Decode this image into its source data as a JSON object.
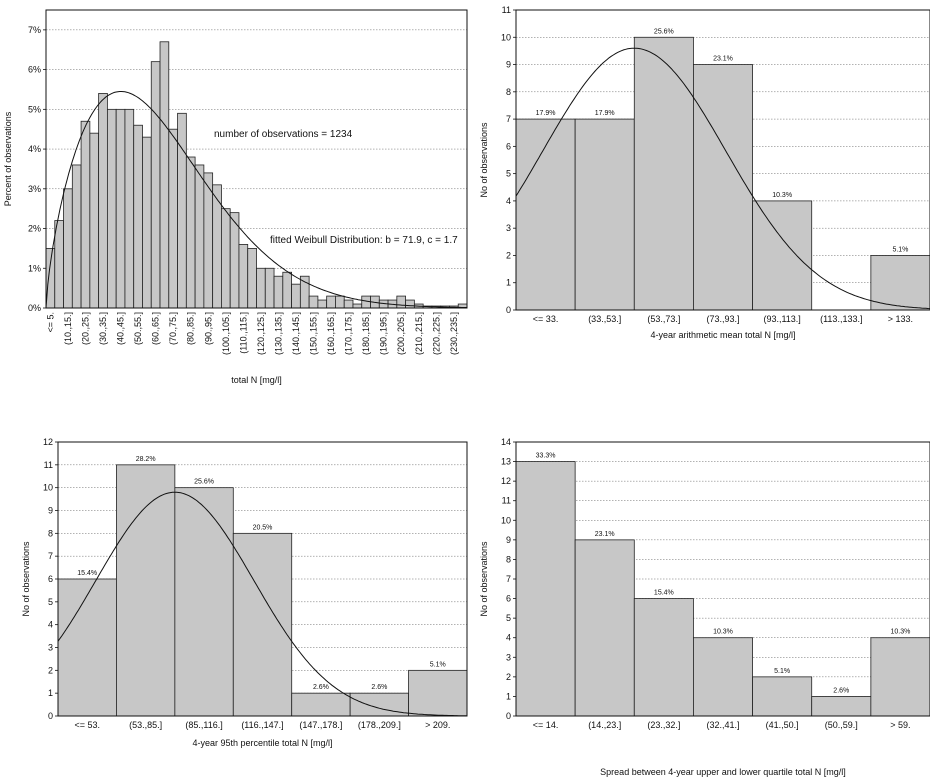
{
  "chart_data": [
    {
      "id": "hist-total-n",
      "type": "bar",
      "ylabel": "Percent of observations",
      "xlabel": "total N [mg/l]",
      "ylim": [
        0,
        7.5
      ],
      "yticks": [
        0,
        1,
        2,
        3,
        4,
        5,
        6,
        7
      ],
      "ytick_suffix": "%",
      "grid": true,
      "categories": [
        "<= 5.",
        "(5.,10.]",
        "(10.,15.]",
        "(15.,20.]",
        "(20.,25.]",
        "(25.,30.]",
        "(30.,35.]",
        "(35.,40.]",
        "(40.,45.]",
        "(45.,50.]",
        "(50.,55.]",
        "(55.,60.]",
        "(60.,65.]",
        "(65.,70.]",
        "(70.,75.]",
        "(75.,80.]",
        "(80.,85.]",
        "(85.,90.]",
        "(90.,95.]",
        "(95.,100.]",
        "(100.,105.]",
        "(105.,110.]",
        "(110.,115.]",
        "(115.,120.]",
        "(120.,125.]",
        "(125.,130.]",
        "(130.,135.]",
        "(135.,140.]",
        "(140.,145.]",
        "(145.,150.]",
        "(150.,155.]",
        "(155.,160.]",
        "(160.,165.]",
        "(165.,170.]",
        "(170.,175.]",
        "(175.,180.]",
        "(180.,185.]",
        "(185.,190.]",
        "(190.,195.]",
        "(195.,200.]",
        "(200.,205.]",
        "(205.,210.]",
        "(210.,215.]",
        "(215.,220.]",
        "(220.,225.]",
        "(225.,230.]",
        "(230.,235.]",
        "(235.,240.]"
      ],
      "shown_tick_labels": [
        "<= 5.",
        "(10.,15.]",
        "(20.,25.]",
        "(30.,35.]",
        "(40.,45.]",
        "(50.,55.]",
        "(60.,65.]",
        "(70.,75.]",
        "(80.,85.]",
        "(90.,95.]",
        "(100.,105.]",
        "(110.,115.]",
        "(120.,125.]",
        "(130.,135.]",
        "(140.,145.]",
        "(150.,155.]",
        "(160.,165.]",
        "(170.,175.]",
        "(180.,185.]",
        "(190.,195.]",
        "(200.,205.]",
        "(210.,215.]",
        "(220.,225.]",
        "(230.,235.]"
      ],
      "values": [
        1.5,
        2.2,
        3.0,
        3.6,
        4.7,
        4.4,
        5.4,
        5.0,
        5.0,
        5.0,
        4.6,
        4.3,
        6.2,
        6.7,
        4.5,
        4.9,
        3.8,
        3.6,
        3.4,
        3.1,
        2.5,
        2.4,
        1.6,
        1.5,
        1.0,
        1.0,
        0.8,
        0.9,
        0.6,
        0.8,
        0.3,
        0.2,
        0.3,
        0.3,
        0.2,
        0.1,
        0.3,
        0.3,
        0.2,
        0.2,
        0.3,
        0.2,
        0.1,
        0.05,
        0.05,
        0.05,
        0.05,
        0.1
      ],
      "fit": {
        "distribution": "weibull",
        "b": 71.9,
        "c": 1.7,
        "scale_peak": 5.45
      },
      "annotations": [
        "number of observations = 1234",
        "fitted Weibull Distribution: b = 71.9, c = 1.7"
      ]
    },
    {
      "id": "hist-mean",
      "type": "bar",
      "ylabel": "No of observations",
      "xlabel": "4-year arithmetic mean total N [mg/l]",
      "ylim": [
        0,
        11
      ],
      "yticks": [
        0,
        1,
        2,
        3,
        4,
        5,
        6,
        7,
        8,
        9,
        10,
        11
      ],
      "grid": true,
      "categories": [
        "<= 33.",
        "(33.,53.]",
        "(53.,73.]",
        "(73.,93.]",
        "(93.,113.]",
        "(113.,133.]",
        "> 133."
      ],
      "values": [
        7,
        7,
        10,
        9,
        4,
        0,
        2
      ],
      "percent_labels": [
        "17.9%",
        "17.9%",
        "25.6%",
        "23.1%",
        "10.3%",
        "",
        "5.1%"
      ],
      "fit": {
        "distribution": "curve",
        "peak_category_pos": 2.0,
        "peak_value": 9.6
      }
    },
    {
      "id": "hist-p95",
      "type": "bar",
      "ylabel": "No of observations",
      "xlabel": "4-year 95th percentile total N [mg/l]",
      "ylim": [
        0,
        12
      ],
      "yticks": [
        0,
        1,
        2,
        3,
        4,
        5,
        6,
        7,
        8,
        9,
        10,
        11,
        12
      ],
      "grid": true,
      "categories": [
        "<= 53.",
        "(53.,85.]",
        "(85.,116.]",
        "(116.,147.]",
        "(147.,178.]",
        "(178.,209.]",
        "> 209."
      ],
      "values": [
        6,
        11,
        10,
        8,
        1,
        1,
        2
      ],
      "percent_labels": [
        "15.4%",
        "28.2%",
        "25.6%",
        "20.5%",
        "2.6%",
        "2.6%",
        "5.1%"
      ],
      "fit": {
        "distribution": "curve",
        "peak_category_pos": 2.0,
        "peak_value": 9.8
      }
    },
    {
      "id": "hist-spread",
      "type": "bar",
      "ylabel": "No of observations",
      "xlabel": "Spread between 4-year upper and lower quartile total N [mg/l]",
      "ylim": [
        0,
        14
      ],
      "yticks": [
        0,
        1,
        2,
        3,
        4,
        5,
        6,
        7,
        8,
        9,
        10,
        11,
        12,
        13,
        14
      ],
      "grid": true,
      "categories": [
        "<= 14.",
        "(14.,23.]",
        "(23.,32.]",
        "(32.,41.]",
        "(41.,50.]",
        "(50.,59.]",
        "> 59."
      ],
      "values": [
        13,
        9,
        6,
        4,
        2,
        1,
        4
      ],
      "percent_labels": [
        "33.3%",
        "23.1%",
        "15.4%",
        "10.3%",
        "5.1%",
        "2.6%",
        "10.3%"
      ]
    }
  ]
}
